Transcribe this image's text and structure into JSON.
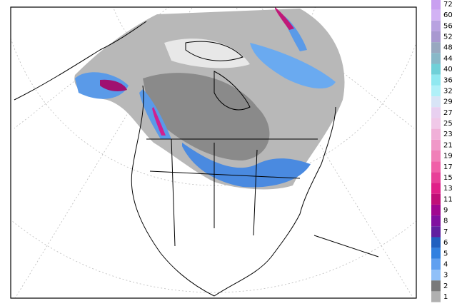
{
  "colorbar": {
    "levels": [
      {
        "value": 72,
        "color": "#c9a0f0"
      },
      {
        "value": 60,
        "color": "#d2b2f4"
      },
      {
        "value": 56,
        "color": "#b8a2e0"
      },
      {
        "value": 52,
        "color": "#a898d0"
      },
      {
        "value": 48,
        "color": "#98a8c0"
      },
      {
        "value": 44,
        "color": "#88b8c8"
      },
      {
        "value": 40,
        "color": "#70d0d8"
      },
      {
        "value": 36,
        "color": "#90e8f0"
      },
      {
        "value": 32,
        "color": "#b0f0f8"
      },
      {
        "value": 29,
        "color": "#d8e4f6"
      },
      {
        "value": 27,
        "color": "#e8d0f0"
      },
      {
        "value": 25,
        "color": "#f0c8e8"
      },
      {
        "value": 23,
        "color": "#f0b0d8"
      },
      {
        "value": 21,
        "color": "#f098c8"
      },
      {
        "value": 19,
        "color": "#f080b8"
      },
      {
        "value": 17,
        "color": "#f060a8"
      },
      {
        "value": 15,
        "color": "#e84098"
      },
      {
        "value": 13,
        "color": "#e02088"
      },
      {
        "value": 11,
        "color": "#c01078"
      },
      {
        "value": 9,
        "color": "#a00890"
      },
      {
        "value": 8,
        "color": "#8010a0"
      },
      {
        "value": 7,
        "color": "#6020a0"
      },
      {
        "value": 6,
        "color": "#2060c0"
      },
      {
        "value": 5,
        "color": "#3080e0"
      },
      {
        "value": 4,
        "color": "#60a0f0"
      },
      {
        "value": 3,
        "color": "#90c0f8"
      },
      {
        "value": 2,
        "color": "#7a7a7a"
      },
      {
        "value": 1,
        "color": "#b0b0b0"
      }
    ]
  }
}
